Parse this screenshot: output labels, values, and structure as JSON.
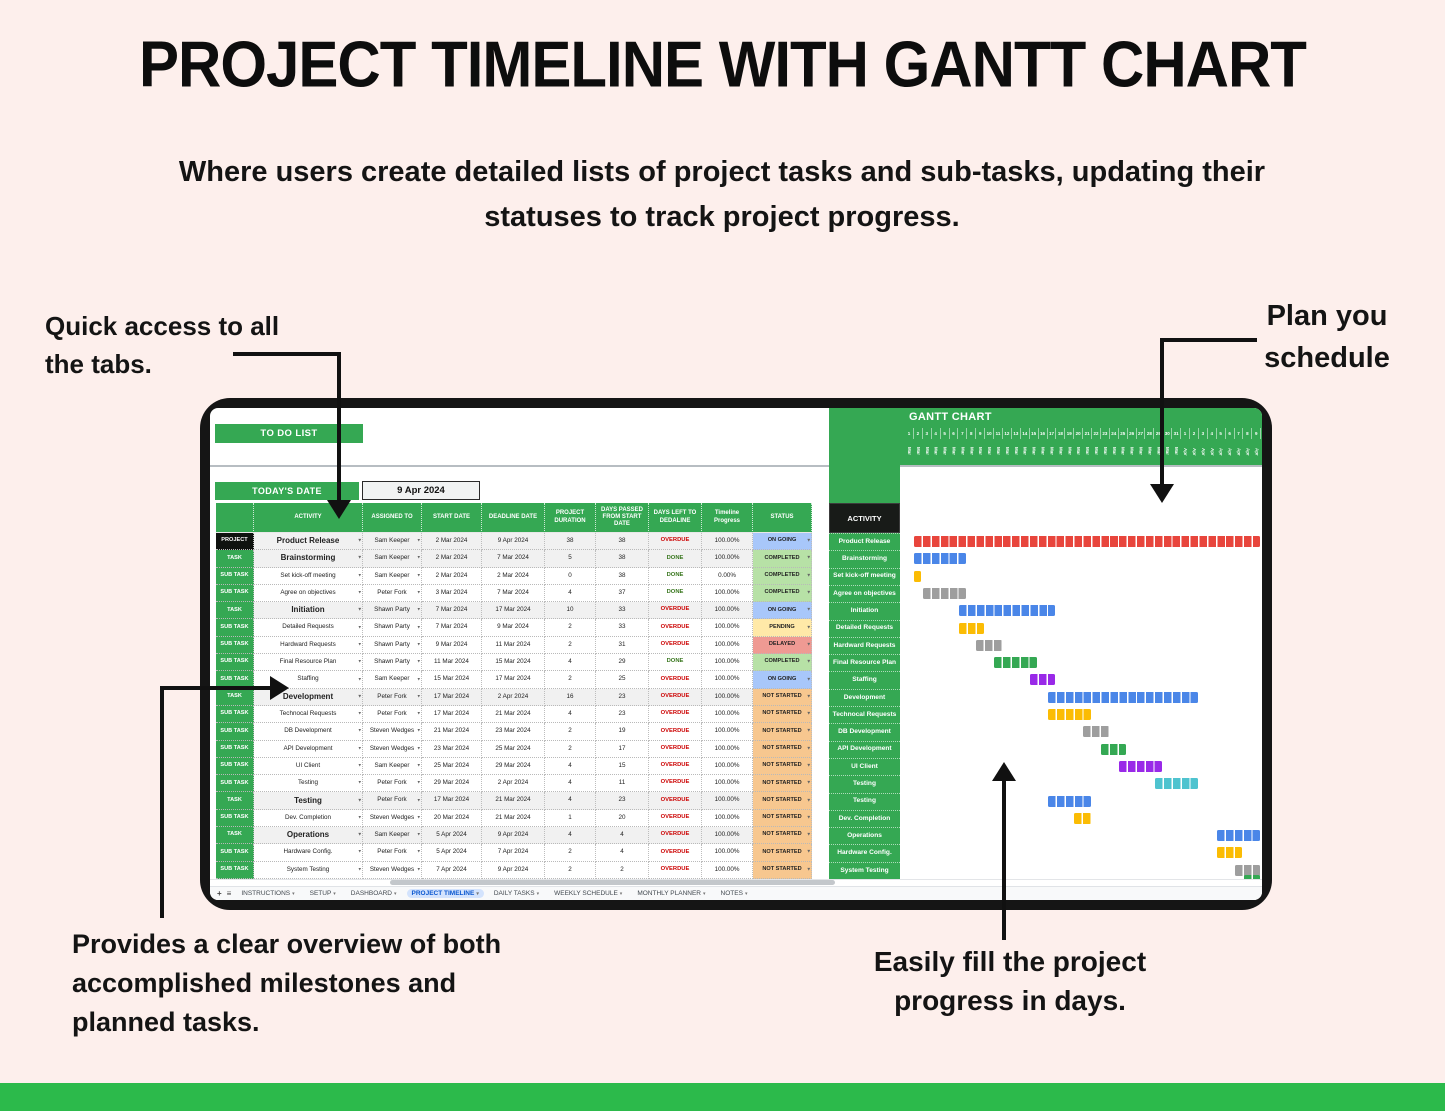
{
  "header": {
    "title": "PROJECT TIMELINE WITH GANTT CHART",
    "subtitle": "Where users create detailed lists of project tasks and sub-tasks, updating their statuses to track project progress."
  },
  "annotations": {
    "tabs": "Quick access to all the tabs.",
    "schedule": "Plan you schedule",
    "overview": "Provides a clear overview of both accomplished milestones and planned tasks.",
    "progress": "Easily fill the project progress in days."
  },
  "sheet": {
    "todo_button": "TO DO LIST",
    "todays_date_label": "TODAY'S DATE",
    "todays_date_value": "9 Apr 2024",
    "table": {
      "headers": [
        "",
        "ACTIVITY",
        "ASSIGNED TO",
        "START DATE",
        "DEADLINE DATE",
        "PROJECT DURATION",
        "DAYS PASSED FROM START DATE",
        "DAYS LEFT TO DEDALINE",
        "Timeline Progress",
        "STATUS"
      ],
      "rows": [
        {
          "type": "PROJECT",
          "activity": "Product Release",
          "assigned": "Sam Keeper",
          "start": "2 Mar 2024",
          "deadline": "9 Apr 2024",
          "duration": "38",
          "days_passed": "38",
          "days_left": "OVERDUE",
          "progress": "100.00%",
          "status": "ON GOING",
          "bar": {
            "start": 2,
            "span": 39,
            "color": "red"
          }
        },
        {
          "type": "TASK",
          "activity": "Brainstorming",
          "assigned": "Sam Keeper",
          "start": "2 Mar 2024",
          "deadline": "7 Mar 2024",
          "duration": "5",
          "days_passed": "38",
          "days_left": "DONE",
          "progress": "100.00%",
          "status": "COMPLETED",
          "bar": {
            "start": 2,
            "span": 6,
            "color": "blue"
          }
        },
        {
          "type": "SUB TASK",
          "activity": "Set kick-off meeting",
          "assigned": "Sam Keeper",
          "start": "2 Mar 2024",
          "deadline": "2 Mar 2024",
          "duration": "0",
          "days_passed": "38",
          "days_left": "DONE",
          "progress": "0.00%",
          "status": "COMPLETED",
          "bar": {
            "start": 2,
            "span": 1,
            "color": "yellow"
          }
        },
        {
          "type": "SUB TASK",
          "activity": "Agree on objectives",
          "assigned": "Peter Fork",
          "start": "3 Mar 2024",
          "deadline": "7 Mar 2024",
          "duration": "4",
          "days_passed": "37",
          "days_left": "DONE",
          "progress": "100.00%",
          "status": "COMPLETED",
          "bar": {
            "start": 3,
            "span": 5,
            "color": "gray"
          }
        },
        {
          "type": "TASK",
          "activity": "Initiation",
          "assigned": "Shawn Party",
          "start": "7 Mar 2024",
          "deadline": "17 Mar 2024",
          "duration": "10",
          "days_passed": "33",
          "days_left": "OVERDUE",
          "progress": "100.00%",
          "status": "ON GOING",
          "bar": {
            "start": 7,
            "span": 11,
            "color": "blue"
          }
        },
        {
          "type": "SUB TASK",
          "activity": "Detailed Requests",
          "assigned": "Shawn Party",
          "start": "7 Mar 2024",
          "deadline": "9 Mar 2024",
          "duration": "2",
          "days_passed": "33",
          "days_left": "OVERDUE",
          "progress": "100.00%",
          "status": "PENDING",
          "bar": {
            "start": 7,
            "span": 3,
            "color": "yellow"
          }
        },
        {
          "type": "SUB TASK",
          "activity": "Hardward Requests",
          "assigned": "Shawn Party",
          "start": "9 Mar 2024",
          "deadline": "11 Mar 2024",
          "duration": "2",
          "days_passed": "31",
          "days_left": "OVERDUE",
          "progress": "100.00%",
          "status": "DELAYED",
          "bar": {
            "start": 9,
            "span": 3,
            "color": "gray"
          }
        },
        {
          "type": "SUB TASK",
          "activity": "Final Resource Plan",
          "assigned": "Shawn Party",
          "start": "11 Mar 2024",
          "deadline": "15 Mar 2024",
          "duration": "4",
          "days_passed": "29",
          "days_left": "DONE",
          "progress": "100.00%",
          "status": "COMPLETED",
          "bar": {
            "start": 11,
            "span": 5,
            "color": "green"
          }
        },
        {
          "type": "SUB TASK",
          "activity": "Staffing",
          "assigned": "Sam Keeper",
          "start": "15 Mar 2024",
          "deadline": "17 Mar 2024",
          "duration": "2",
          "days_passed": "25",
          "days_left": "OVERDUE",
          "progress": "100.00%",
          "status": "ON GOING",
          "bar": {
            "start": 15,
            "span": 3,
            "color": "purple"
          }
        },
        {
          "type": "TASK",
          "activity": "Development",
          "assigned": "Peter Fork",
          "start": "17 Mar 2024",
          "deadline": "2 Apr 2024",
          "duration": "16",
          "days_passed": "23",
          "days_left": "OVERDUE",
          "progress": "100.00%",
          "status": "NOT STARTED",
          "bar": {
            "start": 17,
            "span": 17,
            "color": "blue"
          }
        },
        {
          "type": "SUB TASK",
          "activity": "Technocal Requests",
          "assigned": "Peter Fork",
          "start": "17 Mar 2024",
          "deadline": "21 Mar 2024",
          "duration": "4",
          "days_passed": "23",
          "days_left": "OVERDUE",
          "progress": "100.00%",
          "status": "NOT STARTED",
          "bar": {
            "start": 17,
            "span": 5,
            "color": "yellow"
          }
        },
        {
          "type": "SUB TASK",
          "activity": "DB Development",
          "assigned": "Steven Wedges",
          "start": "21 Mar 2024",
          "deadline": "23 Mar 2024",
          "duration": "2",
          "days_passed": "19",
          "days_left": "OVERDUE",
          "progress": "100.00%",
          "status": "NOT STARTED",
          "bar": {
            "start": 21,
            "span": 3,
            "color": "gray"
          }
        },
        {
          "type": "SUB TASK",
          "activity": "API Development",
          "assigned": "Steven Wedges",
          "start": "23 Mar 2024",
          "deadline": "25 Mar 2024",
          "duration": "2",
          "days_passed": "17",
          "days_left": "OVERDUE",
          "progress": "100.00%",
          "status": "NOT STARTED",
          "bar": {
            "start": 23,
            "span": 3,
            "color": "green"
          }
        },
        {
          "type": "SUB TASK",
          "activity": "UI Client",
          "assigned": "Sam Keeper",
          "start": "25 Mar 2024",
          "deadline": "29 Mar 2024",
          "duration": "4",
          "days_passed": "15",
          "days_left": "OVERDUE",
          "progress": "100.00%",
          "status": "NOT STARTED",
          "bar": {
            "start": 25,
            "span": 5,
            "color": "purple"
          }
        },
        {
          "type": "SUB TASK",
          "activity": "Testing",
          "assigned": "Peter Fork",
          "start": "29 Mar 2024",
          "deadline": "2 Apr 2024",
          "duration": "4",
          "days_passed": "11",
          "days_left": "OVERDUE",
          "progress": "100.00%",
          "status": "NOT STARTED",
          "bar": {
            "start": 29,
            "span": 5,
            "color": "teal"
          }
        },
        {
          "type": "TASK",
          "activity": "Testing",
          "assigned": "Peter Fork",
          "start": "17 Mar 2024",
          "deadline": "21 Mar 2024",
          "duration": "4",
          "days_passed": "23",
          "days_left": "OVERDUE",
          "progress": "100.00%",
          "status": "NOT STARTED",
          "bar": {
            "start": 17,
            "span": 5,
            "color": "blue"
          }
        },
        {
          "type": "SUB TASK",
          "activity": "Dev. Completion",
          "assigned": "Steven Wedges",
          "start": "20 Mar 2024",
          "deadline": "21 Mar 2024",
          "duration": "1",
          "days_passed": "20",
          "days_left": "OVERDUE",
          "progress": "100.00%",
          "status": "NOT STARTED",
          "bar": {
            "start": 20,
            "span": 2,
            "color": "yellow"
          }
        },
        {
          "type": "TASK",
          "activity": "Operations",
          "assigned": "Sam Keeper",
          "start": "5 Apr 2024",
          "deadline": "9 Apr 2024",
          "duration": "4",
          "days_passed": "4",
          "days_left": "OVERDUE",
          "progress": "100.00%",
          "status": "NOT STARTED",
          "bar": {
            "start": 36,
            "span": 5,
            "color": "blue"
          }
        },
        {
          "type": "SUB TASK",
          "activity": "Hardware Config.",
          "assigned": "Peter Fork",
          "start": "5 Apr 2024",
          "deadline": "7 Apr 2024",
          "duration": "2",
          "days_passed": "4",
          "days_left": "OVERDUE",
          "progress": "100.00%",
          "status": "NOT STARTED",
          "bar": {
            "start": 36,
            "span": 3,
            "color": "yellow"
          }
        },
        {
          "type": "SUB TASK",
          "activity": "System Testing",
          "assigned": "Steven Wedges",
          "start": "7 Apr 2024",
          "deadline": "9 Apr 2024",
          "duration": "2",
          "days_passed": "2",
          "days_left": "OVERDUE",
          "progress": "100.00%",
          "status": "NOT STARTED",
          "bar": {
            "start": 38,
            "span": 3,
            "color": "gray"
          }
        }
      ]
    },
    "gantt": {
      "title": "GANTT CHART",
      "activity_header": "ACTIVITY",
      "months": [
        {
          "label": "Mar",
          "days": 31
        },
        {
          "label": "Apr",
          "days": 9
        }
      ],
      "partial_bar": {
        "start": 39,
        "span": 2,
        "color": "green"
      }
    },
    "tabs": {
      "add_icon": "+",
      "menu_icon": "≡",
      "items": [
        "INSTRUCTIONS",
        "SETUP",
        "DASHBOARD",
        "PROJECT TIMELINE",
        "DAILY TASKS",
        "WEEKLY SCHEDULE",
        "MONTHLY PLANNER",
        "NOTES"
      ],
      "active": "PROJECT TIMELINE",
      "dropdown_glyph": "▾"
    }
  },
  "colors": {
    "green": "#35a853",
    "footer_green": "#2cba4b",
    "overdue_text": "#cc0000",
    "done_text": "#38761d",
    "status": {
      "ON GOING": "#a8c7fa",
      "COMPLETED": "#b7e1a6",
      "PENDING": "#ffe9a8",
      "DELAYED": "#ef9a93",
      "NOT STARTED": "#f7c78f"
    },
    "bars": {
      "red": "#e8453c",
      "blue": "#4a86e8",
      "yellow": "#fbbc04",
      "gray": "#9e9e9e",
      "green": "#34a853",
      "purple": "#9929e8",
      "teal": "#4ec3cf"
    }
  }
}
